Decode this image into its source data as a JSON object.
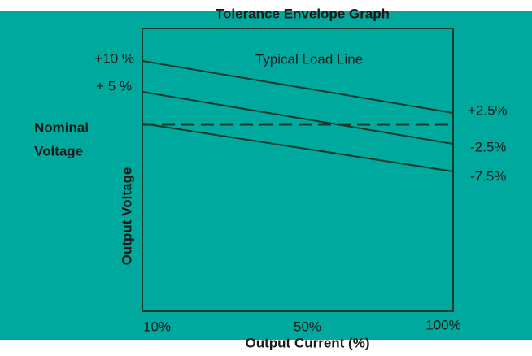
{
  "title": "Tolerance Envelope Graph",
  "left_labels": [
    "+10 %",
    "+ 5 %"
  ],
  "nominal": [
    "Nominal",
    "Voltage"
  ],
  "y_axis_label": "Output Voltage",
  "line_label": "Typical Load Line",
  "right_labels": [
    "+2.5%",
    "-2.5%",
    "-7.5%"
  ],
  "x_tick_labels": [
    "10%",
    "50%",
    "100%"
  ],
  "x_axis_label": "Output Current (%)"
}
